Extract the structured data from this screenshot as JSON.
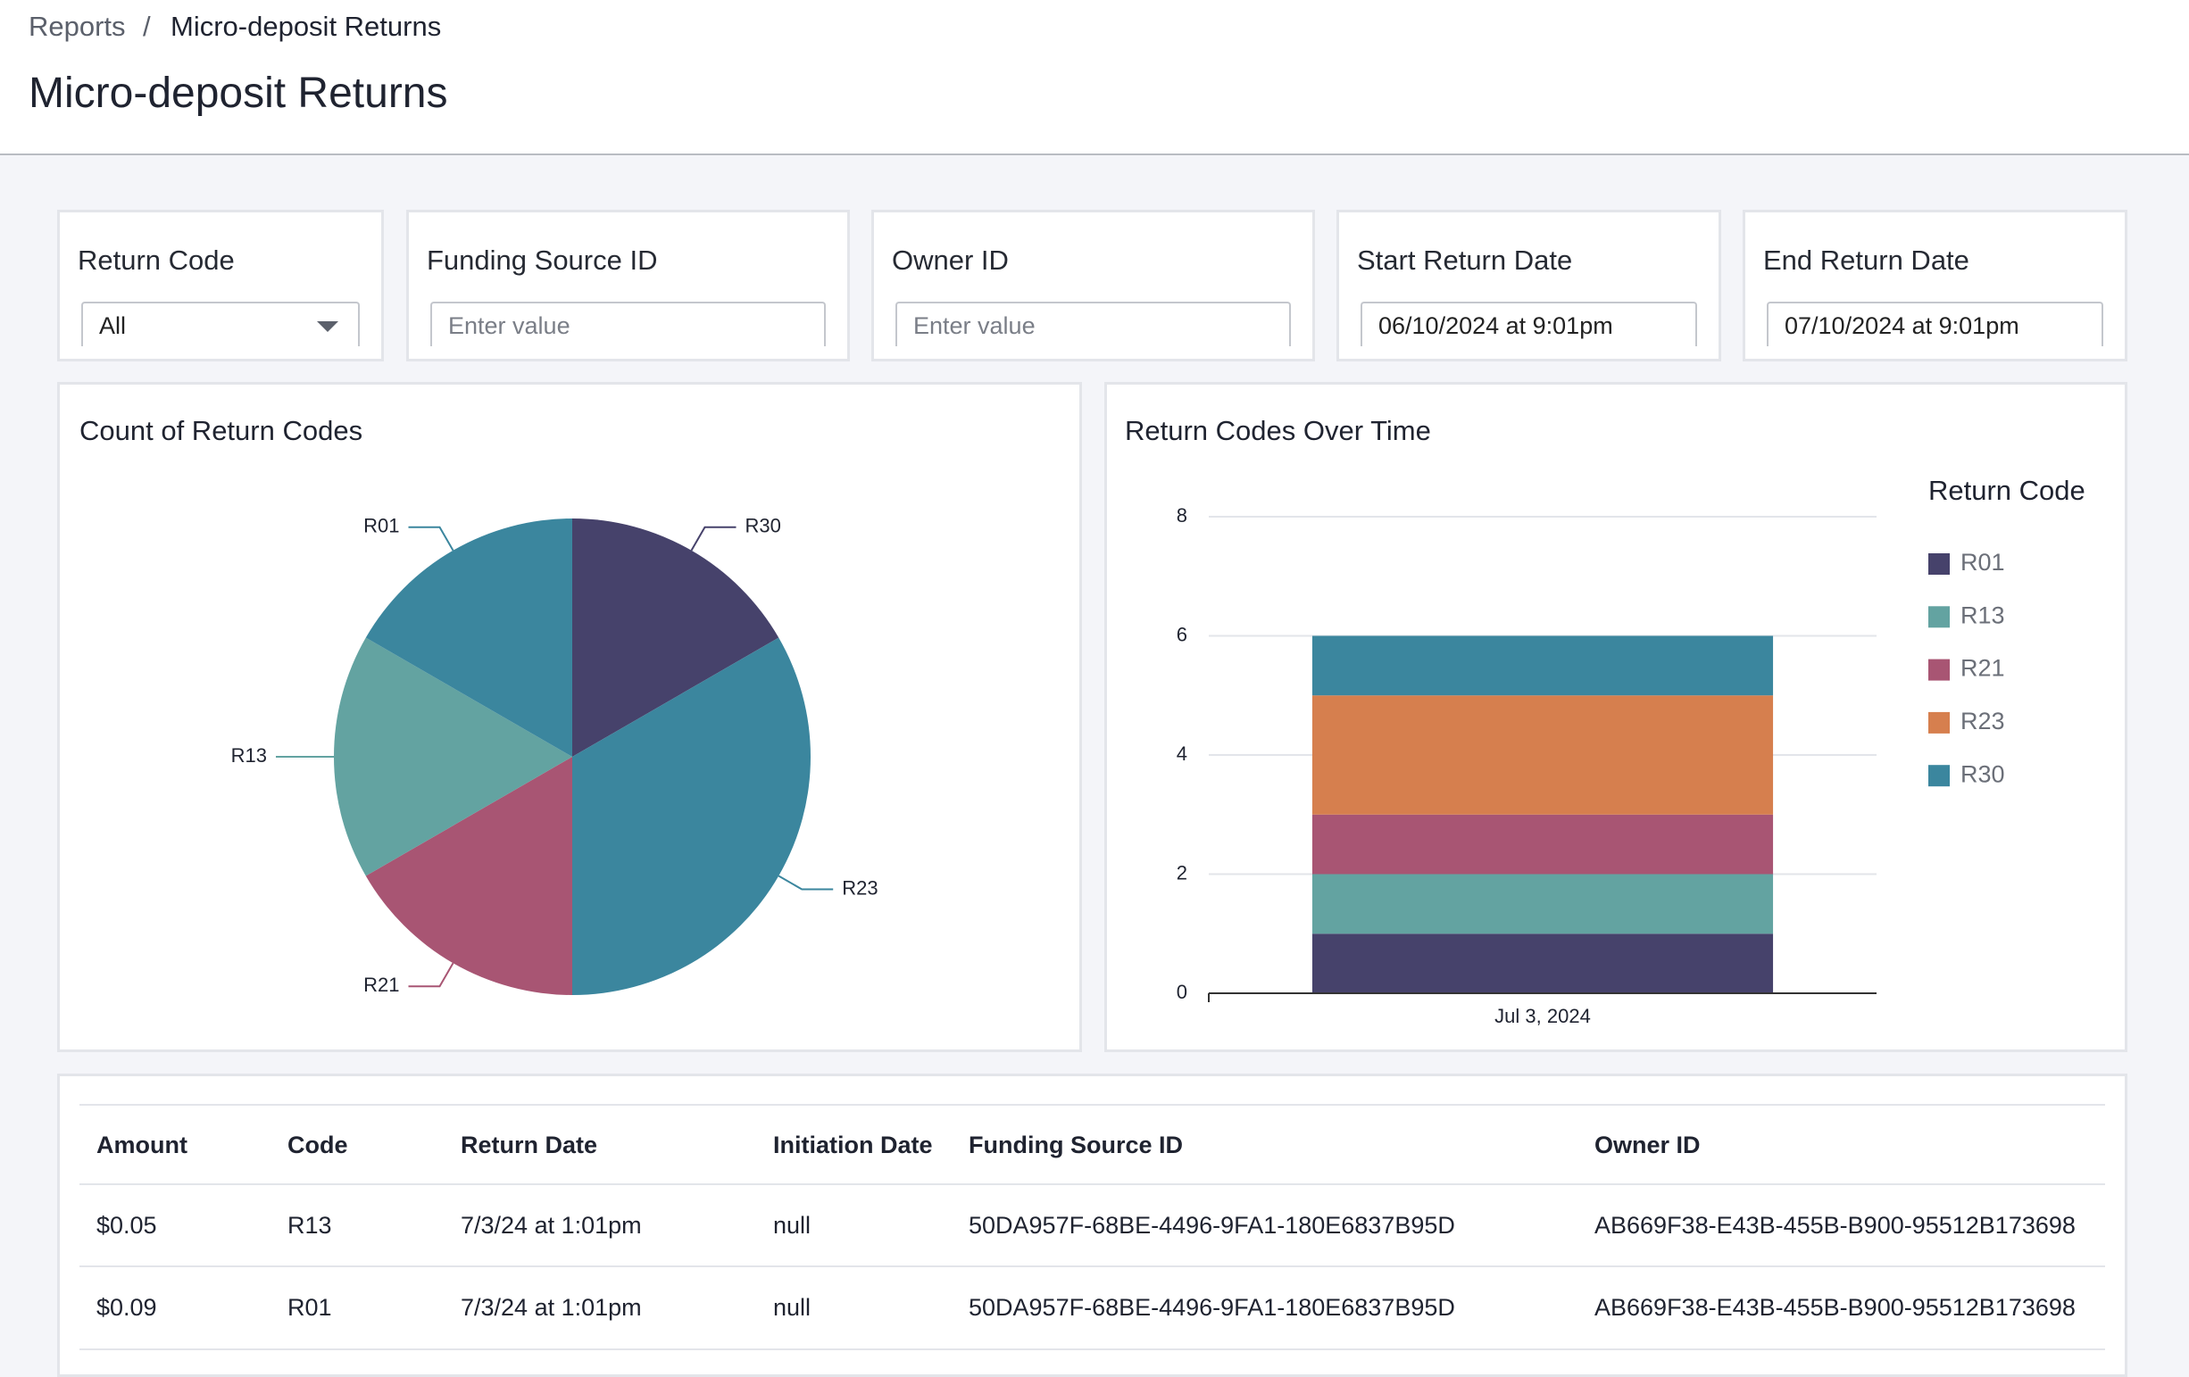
{
  "breadcrumb": {
    "parent": "Reports",
    "separator": "/",
    "current": "Micro-deposit Returns"
  },
  "title": "Micro-deposit Returns",
  "filters": [
    {
      "label": "Return Code",
      "value": "All"
    },
    {
      "label": "Funding Source ID",
      "placeholder": "Enter value"
    },
    {
      "label": "Owner ID",
      "placeholder": "Enter value"
    },
    {
      "label": "Start Return Date",
      "value": "06/10/2024 at 9:01pm"
    },
    {
      "label": "End Return Date",
      "value": "07/10/2024 at 9:01pm"
    }
  ],
  "chart_data": [
    {
      "type": "pie",
      "title": "Count of Return Codes",
      "categories": [
        "R30",
        "R23",
        "R21",
        "R13",
        "R01"
      ],
      "values": [
        1,
        2,
        1,
        1,
        1
      ],
      "colors": [
        "#46426b",
        "#3b869e",
        "#a85573",
        "#63a3a1",
        "#3b869e"
      ]
    },
    {
      "type": "bar",
      "stacked": true,
      "title": "Return Codes Over Time",
      "legend_title": "Return Code",
      "categories": [
        "Jul 3, 2024"
      ],
      "ylim": [
        0,
        8
      ],
      "yticks": [
        0,
        2,
        4,
        6,
        8
      ],
      "grid": true,
      "series": [
        {
          "name": "R01",
          "color": "#46426b",
          "values": [
            1
          ]
        },
        {
          "name": "R13",
          "color": "#63a3a1",
          "values": [
            1
          ]
        },
        {
          "name": "R21",
          "color": "#a85573",
          "values": [
            1
          ]
        },
        {
          "name": "R23",
          "color": "#d67f4e",
          "values": [
            2
          ]
        },
        {
          "name": "R30",
          "color": "#3b869e",
          "values": [
            1
          ]
        }
      ]
    }
  ],
  "table": {
    "columns": [
      "Amount",
      "Code",
      "Return Date",
      "Initiation Date",
      "Funding Source ID",
      "Owner ID"
    ],
    "rows": [
      [
        "$0.05",
        "R13",
        "7/3/24 at 1:01pm",
        "null",
        "50DA957F-68BE-4496-9FA1-180E6837B95D",
        "AB669F38-E43B-455B-B900-95512B173698"
      ],
      [
        "$0.09",
        "R01",
        "7/3/24 at 1:01pm",
        "null",
        "50DA957F-68BE-4496-9FA1-180E6837B95D",
        "AB669F38-E43B-455B-B900-95512B173698"
      ]
    ]
  }
}
